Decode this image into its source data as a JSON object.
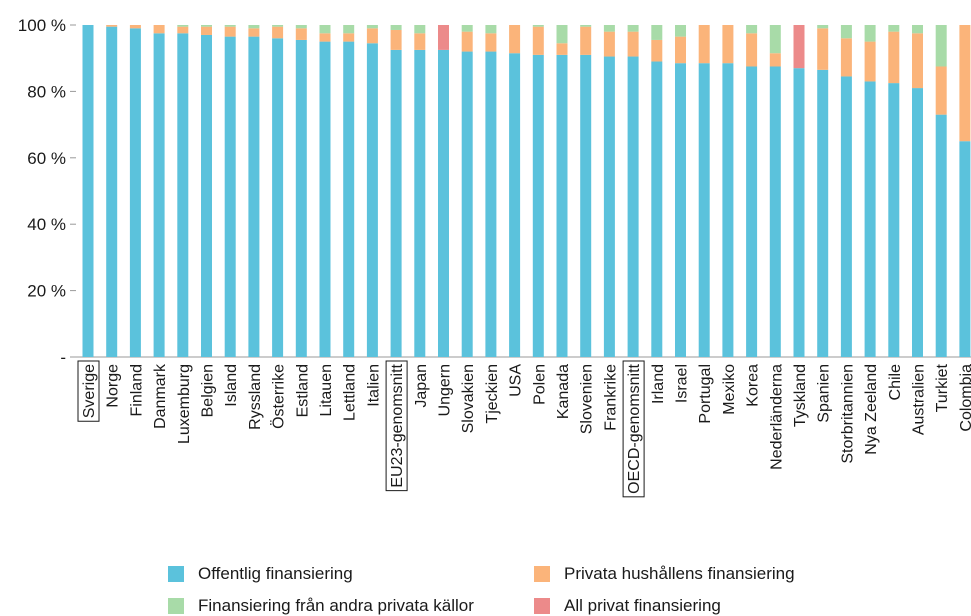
{
  "chart_data": {
    "type": "bar",
    "stacked": true,
    "ylim": [
      0,
      100
    ],
    "yticks": [
      {
        "value": 0,
        "label": "-"
      },
      {
        "value": 20,
        "label": "20 %"
      },
      {
        "value": 40,
        "label": "40 %"
      },
      {
        "value": 60,
        "label": "60 %"
      },
      {
        "value": 80,
        "label": "80 %"
      },
      {
        "value": 100,
        "label": "100 %"
      }
    ],
    "grid": false,
    "legend_position": "bottom",
    "highlighted_categories": [
      "Sverige",
      "EU23-genomsnitt",
      "OECD-genomsnitt"
    ],
    "categories": [
      "Sverige",
      "Norge",
      "Finland",
      "Danmark",
      "Luxemburg",
      "Belgien",
      "Island",
      "Ryssland",
      "Österrike",
      "Estland",
      "Litauen",
      "Lettland",
      "Italien",
      "EU23-genomsnitt",
      "Japan",
      "Ungern",
      "Slovakien",
      "Tjeckien",
      "USA",
      "Polen",
      "Kanada",
      "Slovenien",
      "Frankrike",
      "OECD-genomsnitt",
      "Irland",
      "Israel",
      "Portugal",
      "Mexiko",
      "Korea",
      "Nederländerna",
      "Tyskland",
      "Spanien",
      "Storbritannien",
      "Nya Zeeland",
      "Chile",
      "Australien",
      "Turkiet",
      "Colombia"
    ],
    "series": [
      {
        "name": "Offentlig finansiering",
        "color": "#5bc2dc",
        "values": [
          100,
          99.5,
          99,
          97.5,
          97.5,
          97,
          96.5,
          96.5,
          96,
          95.5,
          95,
          95,
          94.5,
          92.5,
          92.5,
          92.5,
          92,
          92,
          91.5,
          91,
          91,
          91,
          90.5,
          90.5,
          89,
          88.5,
          88.5,
          88.5,
          87.5,
          87.5,
          87,
          86.5,
          84.5,
          83,
          82.5,
          81,
          73,
          65
        ]
      },
      {
        "name": "Privata hushållens finansiering",
        "color": "#fbb47a",
        "values": [
          0,
          0.5,
          1,
          2.5,
          2,
          2.5,
          3,
          2.5,
          3.5,
          3.5,
          2.5,
          2.5,
          4.5,
          6,
          5,
          0,
          6,
          5.5,
          8.5,
          8.5,
          3.5,
          8.5,
          7.5,
          7.5,
          6.5,
          8,
          11.5,
          11.5,
          10,
          4,
          0,
          12.5,
          11.5,
          12,
          15.5,
          16.5,
          14.5,
          35
        ]
      },
      {
        "name": "Finansiering från andra privata källor",
        "color": "#a8dba8",
        "values": [
          0,
          0,
          0,
          0,
          0.5,
          0.5,
          0.5,
          1,
          0.5,
          1,
          2.5,
          2.5,
          1,
          1.5,
          2.5,
          0,
          2,
          2.5,
          0,
          0.5,
          5.5,
          0.5,
          2,
          2,
          4.5,
          3.5,
          0,
          0,
          2.5,
          8.5,
          0,
          1,
          4,
          5,
          2,
          2.5,
          12.5,
          0
        ]
      },
      {
        "name": "All privat finansiering",
        "color": "#ec8a8a",
        "values": [
          0,
          0,
          0,
          0,
          0,
          0,
          0,
          0,
          0,
          0,
          0,
          0,
          0,
          0,
          0,
          7.5,
          0,
          0,
          0,
          0,
          0,
          0,
          0,
          0,
          0,
          0,
          0,
          0,
          0,
          0,
          13,
          0,
          0,
          0,
          0,
          0,
          0,
          0
        ]
      }
    ]
  }
}
